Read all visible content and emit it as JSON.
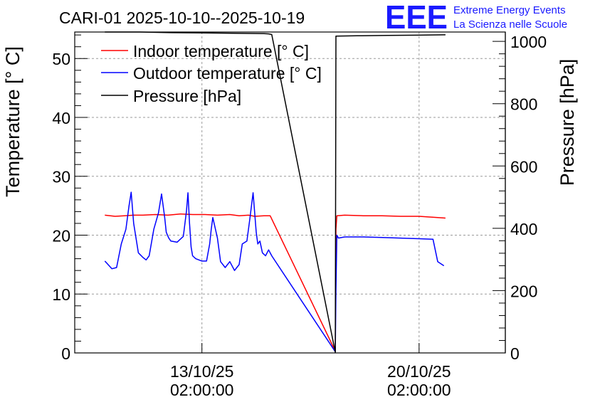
{
  "title": "CARI-01 2025-10-10--2025-10-19",
  "logo": {
    "mark": "EEE",
    "line1": "Extreme Energy Events",
    "line2": "La Scienza nelle Scuole",
    "color": "#1a1aff"
  },
  "chart_data": {
    "type": "line",
    "title": "CARI-01 2025-10-10--2025-10-19",
    "xlabel": "",
    "ylabel": "Temperature [° C]",
    "y2label": "Pressure [hPa]",
    "ylim": [
      0,
      54.5
    ],
    "y2lim": [
      0,
      1030
    ],
    "xlim": [
      -4.1,
      9.78
    ],
    "x_unit": "days since 2025-10-13 02:00:00",
    "grid": true,
    "legend_position": "top-left",
    "xticks": [
      {
        "value": 0,
        "date": "13/10/25",
        "time": "02:00:00"
      },
      {
        "value": 7,
        "date": "20/10/25",
        "time": "02:00:00"
      }
    ],
    "yticks": [
      0,
      10,
      20,
      30,
      40,
      50
    ],
    "y2ticks": [
      0,
      200,
      400,
      600,
      800,
      1000
    ],
    "series": [
      {
        "name": "Indoor temperature [° C]",
        "color": "#ff0000",
        "axis": "left",
        "x": [
          -3.13,
          -2.8,
          -2.5,
          -2.2,
          -1.9,
          -1.5,
          -1.1,
          -0.7,
          -0.3,
          0.1,
          0.5,
          0.9,
          1.2,
          1.5,
          1.7,
          2.0,
          2.2,
          4.3,
          4.32,
          4.35,
          4.6,
          5.2,
          5.8,
          6.4,
          7.0,
          7.6,
          7.85
        ],
        "values": [
          23.4,
          23.2,
          23.3,
          23.4,
          23.4,
          23.5,
          23.4,
          23.6,
          23.5,
          23.5,
          23.4,
          23.5,
          23.3,
          23.4,
          23.2,
          23.3,
          23.3,
          0.3,
          21.0,
          23.3,
          23.4,
          23.3,
          23.3,
          23.2,
          23.2,
          23.0,
          22.9
        ]
      },
      {
        "name": "Outdoor temperature [° C]",
        "color": "#0000ff",
        "axis": "left",
        "x": [
          -3.13,
          -2.9,
          -2.75,
          -2.6,
          -2.45,
          -2.35,
          -2.28,
          -2.2,
          -2.05,
          -1.9,
          -1.8,
          -1.7,
          -1.55,
          -1.4,
          -1.3,
          -1.2,
          -1.15,
          -1.07,
          -1.0,
          -0.8,
          -0.6,
          -0.5,
          -0.45,
          -0.4,
          -0.35,
          -0.3,
          -0.2,
          0.0,
          0.15,
          0.25,
          0.3,
          0.35,
          0.5,
          0.6,
          0.75,
          0.9,
          1.05,
          1.2,
          1.3,
          1.45,
          1.55,
          1.65,
          1.75,
          1.8,
          1.87,
          1.95,
          2.05,
          2.15,
          2.25,
          4.3,
          4.32,
          4.35,
          4.4,
          4.6,
          5.2,
          5.8,
          6.4,
          7.0,
          7.45,
          7.6,
          7.8
        ],
        "values": [
          15.6,
          14.3,
          14.5,
          18.5,
          21.0,
          25.0,
          27.3,
          22.0,
          17.0,
          16.2,
          15.8,
          16.5,
          21.0,
          23.8,
          27.0,
          23.0,
          20.5,
          19.5,
          19.0,
          18.8,
          19.8,
          24.0,
          27.2,
          22.0,
          18.0,
          16.5,
          16.0,
          15.6,
          15.6,
          18.5,
          21.0,
          23.0,
          19.5,
          15.5,
          14.5,
          15.5,
          14.0,
          15.0,
          18.5,
          19.0,
          23.0,
          27.2,
          20.5,
          18.5,
          19.0,
          17.0,
          16.5,
          17.5,
          16.5,
          0.2,
          10.5,
          20.0,
          19.5,
          19.7,
          19.7,
          19.6,
          19.5,
          19.4,
          19.3,
          15.5,
          14.8
        ]
      },
      {
        "name": "Pressure [hPa]",
        "color": "#000000",
        "axis": "right",
        "x": [
          -3.13,
          -2.0,
          -1.0,
          0.0,
          1.0,
          2.0,
          2.15,
          2.25,
          4.3,
          4.32,
          5.0,
          6.0,
          7.0,
          7.85
        ],
        "values": [
          1030,
          1030,
          1028,
          1027,
          1026,
          1025,
          1024,
          1022,
          2,
          1017,
          1018,
          1019,
          1020,
          1021
        ]
      }
    ]
  }
}
